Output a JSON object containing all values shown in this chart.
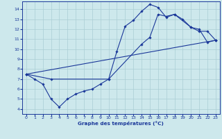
{
  "bg_color": "#cde8ec",
  "line_color": "#1a3799",
  "grid_color": "#aacdd4",
  "xlabel": "Graphe des températures (°C)",
  "xlabel_color": "#1a3799",
  "ylim": [
    3.5,
    14.8
  ],
  "xlim": [
    -0.5,
    23.5
  ],
  "yticks": [
    4,
    5,
    6,
    7,
    8,
    9,
    10,
    11,
    12,
    13,
    14
  ],
  "xticks": [
    0,
    1,
    2,
    3,
    4,
    5,
    6,
    7,
    8,
    9,
    10,
    11,
    12,
    13,
    14,
    15,
    16,
    17,
    18,
    19,
    20,
    21,
    22,
    23
  ],
  "series": [
    {
      "x": [
        0,
        1,
        2,
        3,
        4,
        5,
        6,
        7,
        8,
        9,
        10,
        11,
        12,
        13,
        14,
        15,
        16,
        17,
        18,
        19,
        20,
        21,
        22,
        23
      ],
      "y": [
        7.5,
        7.0,
        6.5,
        5.0,
        4.2,
        5.0,
        5.5,
        5.8,
        6.0,
        6.5,
        7.0,
        9.8,
        12.3,
        12.9,
        13.8,
        14.5,
        14.2,
        13.2,
        13.5,
        13.0,
        12.2,
        12.0,
        10.7,
        10.9
      ]
    },
    {
      "x": [
        0,
        3,
        10,
        14,
        15,
        16,
        17,
        18,
        20,
        21,
        22,
        23
      ],
      "y": [
        7.5,
        7.0,
        7.0,
        10.5,
        11.2,
        13.5,
        13.3,
        13.5,
        12.2,
        11.8,
        11.8,
        10.9
      ]
    },
    {
      "x": [
        0,
        23
      ],
      "y": [
        7.5,
        10.9
      ]
    }
  ]
}
